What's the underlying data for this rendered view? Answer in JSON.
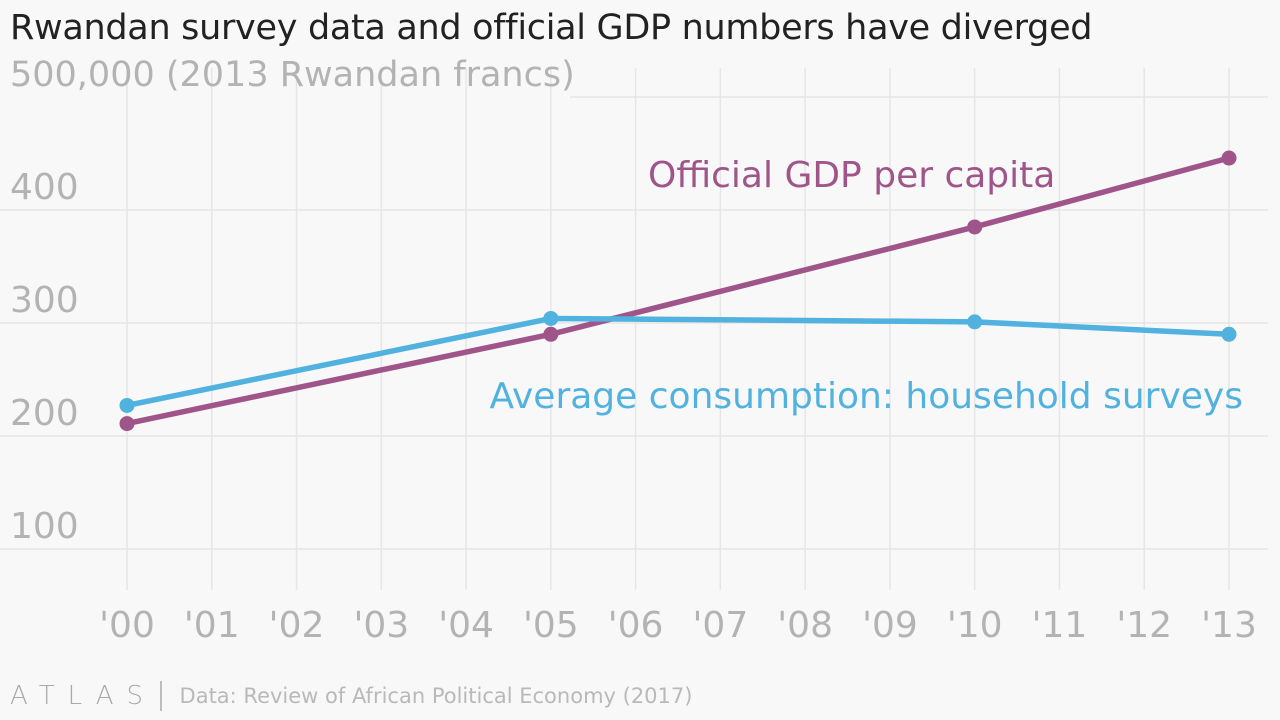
{
  "title": "Rwandan survey data and official GDP numbers have diverged",
  "footer": {
    "logo": "ATLAS",
    "source": "Data: Review of African Political Economy (2017)"
  },
  "chart_data": {
    "type": "line",
    "x_ticks": [
      "'00",
      "'01",
      "'02",
      "'03",
      "'04",
      "'05",
      "'06",
      "'07",
      "'08",
      "'09",
      "'10",
      "'11",
      "'12",
      "'13"
    ],
    "xlim": [
      2000,
      2013
    ],
    "y_ticks": [
      100,
      200,
      300,
      400,
      500
    ],
    "y_tick_labels": [
      "100",
      "200",
      "300",
      "400",
      "500,000 (2013 Rwandan francs)"
    ],
    "ylim": [
      100,
      500
    ],
    "grid": true,
    "series": [
      {
        "name": "Official GDP per capita",
        "color": "#a0558a",
        "x": [
          2000,
          2005,
          2010,
          2013
        ],
        "values": [
          211,
          290,
          385,
          446
        ]
      },
      {
        "name": "Average consumption: household surveys",
        "color": "#51b2e0",
        "x": [
          2000,
          2005,
          2010,
          2013
        ],
        "values": [
          227,
          304,
          301,
          290
        ]
      }
    ]
  }
}
